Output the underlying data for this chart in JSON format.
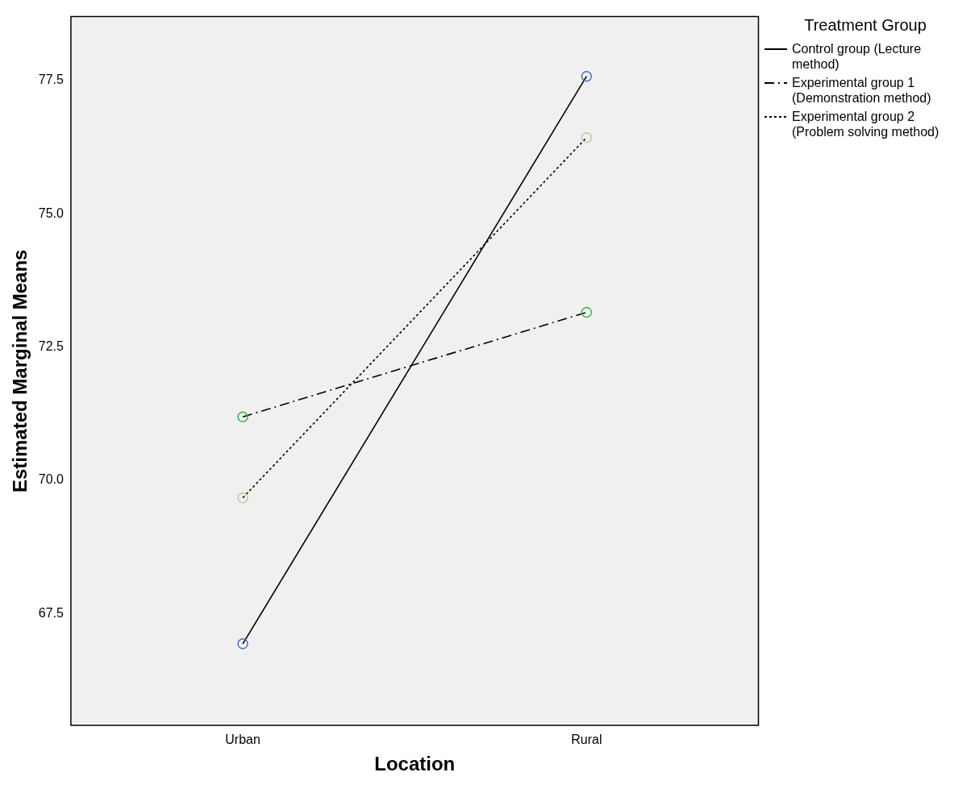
{
  "chart_data": {
    "type": "line",
    "xlabel": "Location",
    "ylabel": "Estimated Marginal Means",
    "legend_title": "Treatment Group",
    "categories": [
      "Urban",
      "Rural"
    ],
    "series": [
      {
        "name": "Control group (Lecture method)",
        "color": "#000000",
        "colors": [
          "#4a6fbd",
          "#4a6fbd"
        ],
        "line_style": "solid",
        "values": [
          66.93,
          77.58
        ]
      },
      {
        "name": "Experimental group 1 (Demonstration method)",
        "color": "#000000",
        "colors": [
          "#3cb44a",
          "#3cb44a"
        ],
        "line_style": "dashed",
        "values": [
          71.19,
          73.15
        ]
      },
      {
        "name": "Experimental group 2 (Problem solving method)",
        "color": "#000000",
        "colors": [
          "#c8c89a",
          "#c8c89a"
        ],
        "line_style": "dotted",
        "values": [
          69.67,
          76.43
        ]
      }
    ],
    "ylim": [
      65.4,
      78.7
    ],
    "yticks": [
      {
        "value": 67.5,
        "label": "67.5"
      },
      {
        "value": 70,
        "label": "70.0"
      },
      {
        "value": 72.5,
        "label": "72.5"
      },
      {
        "value": 75,
        "label": "75.0"
      },
      {
        "value": 77.5,
        "label": "77.5"
      }
    ],
    "marker": "circle",
    "grid": false,
    "legend": "top right"
  }
}
